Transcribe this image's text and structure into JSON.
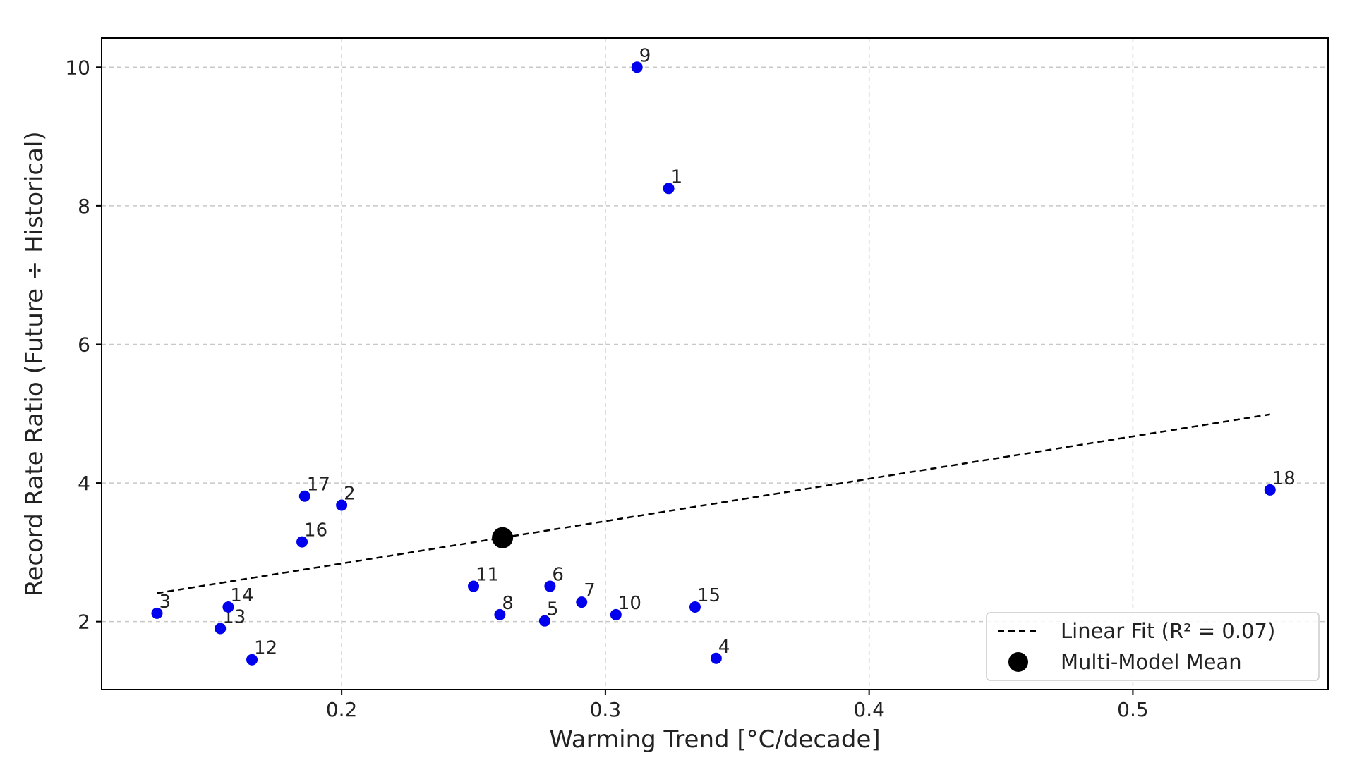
{
  "chart_data": {
    "type": "scatter",
    "title": "",
    "xlabel": "Warming Trend [°C/decade]",
    "ylabel": "Record Rate Ratio (Future ÷ Historical)",
    "xlim": [
      0.109,
      0.574
    ],
    "ylim": [
      1.02,
      10.42
    ],
    "xticks": [
      0.2,
      0.3,
      0.4,
      0.5
    ],
    "xtick_labels": [
      "0.2",
      "0.3",
      "0.4",
      "0.5"
    ],
    "yticks": [
      2,
      4,
      6,
      8,
      10
    ],
    "ytick_labels": [
      "2",
      "4",
      "6",
      "8",
      "10"
    ],
    "grid": true,
    "legend_position": "lower-right",
    "points_color": "#0000ee",
    "mean_color": "#000000",
    "points": [
      {
        "label": "1",
        "x": 0.324,
        "y": 8.25
      },
      {
        "label": "2",
        "x": 0.2,
        "y": 3.68
      },
      {
        "label": "3",
        "x": 0.13,
        "y": 2.12
      },
      {
        "label": "4",
        "x": 0.342,
        "y": 1.47
      },
      {
        "label": "5",
        "x": 0.277,
        "y": 2.01
      },
      {
        "label": "6",
        "x": 0.279,
        "y": 2.51
      },
      {
        "label": "7",
        "x": 0.291,
        "y": 2.28
      },
      {
        "label": "8",
        "x": 0.26,
        "y": 2.1
      },
      {
        "label": "9",
        "x": 0.312,
        "y": 10.0
      },
      {
        "label": "10",
        "x": 0.304,
        "y": 2.1
      },
      {
        "label": "11",
        "x": 0.25,
        "y": 2.51
      },
      {
        "label": "12",
        "x": 0.166,
        "y": 1.45
      },
      {
        "label": "13",
        "x": 0.154,
        "y": 1.9
      },
      {
        "label": "14",
        "x": 0.157,
        "y": 2.21
      },
      {
        "label": "15",
        "x": 0.334,
        "y": 2.21
      },
      {
        "label": "16",
        "x": 0.185,
        "y": 3.15
      },
      {
        "label": "17",
        "x": 0.186,
        "y": 3.81
      },
      {
        "label": "18",
        "x": 0.552,
        "y": 3.9
      }
    ],
    "multi_model_mean": {
      "x": 0.261,
      "y": 3.21
    },
    "linear_fit": {
      "x": [
        0.13,
        0.552
      ],
      "y": [
        2.41,
        4.99
      ]
    },
    "legend": [
      {
        "label": "Linear Fit (R² = 0.07)",
        "type": "dashed-line"
      },
      {
        "label": "Multi-Model Mean",
        "type": "marker"
      }
    ]
  }
}
